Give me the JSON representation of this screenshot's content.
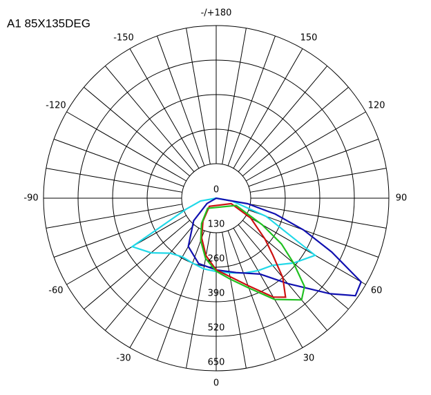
{
  "chart_data": {
    "type": "polar",
    "title": "A1 85X135DEG",
    "rlim": [
      0,
      650
    ],
    "rticks": [
      0,
      130,
      260,
      390,
      520,
      650
    ],
    "thetaticks": [
      -150,
      -120,
      -90,
      -60,
      -30,
      0,
      30,
      60,
      90,
      120,
      150,
      {
        "value": 180,
        "label": "-/+180"
      }
    ],
    "grid": true,
    "series": [
      {
        "color": "#20d8e8",
        "angles": [
          -90,
          -80,
          -70,
          -60,
          -50,
          -40,
          -30,
          -20,
          -10,
          0,
          10,
          20,
          30,
          40,
          50,
          60,
          70,
          80,
          90
        ],
        "values": [
          0,
          60,
          120,
          365,
          320,
          270,
          255,
          260,
          270,
          276,
          285,
          300,
          315,
          330,
          380,
          430,
          200,
          60,
          0
        ]
      },
      {
        "color": "#1010b0",
        "angles": [
          -60,
          -45,
          -30,
          -15,
          0,
          15,
          30,
          40,
          50,
          55,
          60,
          65,
          70,
          75,
          80,
          90
        ],
        "values": [
          40,
          120,
          210,
          255,
          270,
          290,
          330,
          420,
          560,
          640,
          630,
          480,
          350,
          230,
          120,
          0
        ]
      },
      {
        "color": "#cc1010",
        "angles": [
          -40,
          -30,
          -20,
          -10,
          0,
          10,
          20,
          30,
          35,
          40,
          45,
          50,
          60,
          70
        ],
        "values": [
          40,
          100,
          160,
          220,
          270,
          300,
          350,
          430,
          455,
          390,
          300,
          240,
          150,
          60
        ]
      },
      {
        "color": "#20c020",
        "angles": [
          -40,
          -30,
          -20,
          -10,
          0,
          10,
          20,
          30,
          40,
          45,
          50,
          55,
          60,
          70
        ],
        "values": [
          50,
          110,
          170,
          230,
          275,
          310,
          360,
          440,
          500,
          470,
          380,
          300,
          200,
          80
        ]
      }
    ]
  }
}
